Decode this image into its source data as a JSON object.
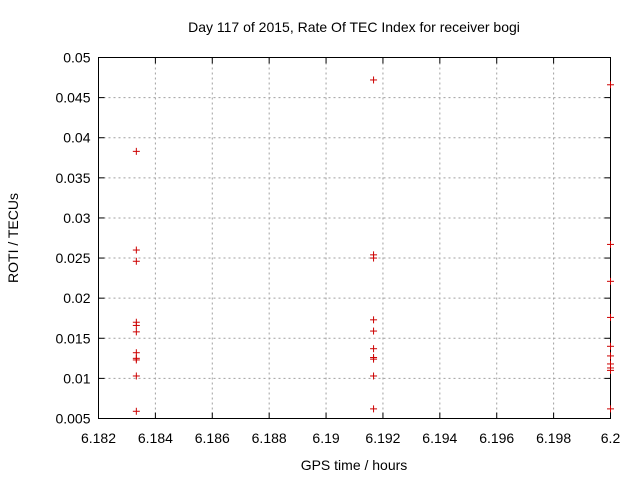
{
  "chart_data": {
    "type": "scatter",
    "title": "Day 117 of 2015, Rate Of TEC Index for receiver bogi",
    "xlabel": "GPS time / hours",
    "ylabel": "ROTI / TECUs",
    "xlim": [
      6.182,
      6.2
    ],
    "ylim": [
      0.005,
      0.05
    ],
    "x_ticks": [
      6.182,
      6.184,
      6.186,
      6.188,
      6.19,
      6.192,
      6.194,
      6.196,
      6.198,
      6.2
    ],
    "x_tick_labels": [
      "6.182",
      "6.184",
      "6.186",
      "6.188",
      "6.19",
      "6.192",
      "6.194",
      "6.196",
      "6.198",
      "6.2"
    ],
    "y_ticks": [
      0.005,
      0.01,
      0.015,
      0.02,
      0.025,
      0.03,
      0.035,
      0.04,
      0.045,
      0.05
    ],
    "y_tick_labels": [
      "0.005",
      "0.01",
      "0.015",
      "0.02",
      "0.025",
      "0.03",
      "0.035",
      "0.04",
      "0.045",
      "0.05"
    ],
    "grid": true,
    "marker": "+",
    "color": "#cc0000",
    "series": [
      {
        "name": "ROTI",
        "points": [
          {
            "x": 6.18333,
            "y": 0.0383
          },
          {
            "x": 6.18333,
            "y": 0.026
          },
          {
            "x": 6.18333,
            "y": 0.0246
          },
          {
            "x": 6.18333,
            "y": 0.017
          },
          {
            "x": 6.18333,
            "y": 0.0166
          },
          {
            "x": 6.18333,
            "y": 0.0158
          },
          {
            "x": 6.18333,
            "y": 0.0132
          },
          {
            "x": 6.18333,
            "y": 0.0125
          },
          {
            "x": 6.18333,
            "y": 0.0123
          },
          {
            "x": 6.18333,
            "y": 0.0103
          },
          {
            "x": 6.18333,
            "y": 0.0059
          },
          {
            "x": 6.19167,
            "y": 0.0472
          },
          {
            "x": 6.19167,
            "y": 0.0254
          },
          {
            "x": 6.19167,
            "y": 0.025
          },
          {
            "x": 6.19167,
            "y": 0.0173
          },
          {
            "x": 6.19167,
            "y": 0.0159
          },
          {
            "x": 6.19167,
            "y": 0.0137
          },
          {
            "x": 6.19167,
            "y": 0.0126
          },
          {
            "x": 6.19167,
            "y": 0.0124
          },
          {
            "x": 6.19167,
            "y": 0.0103
          },
          {
            "x": 6.19167,
            "y": 0.0062
          },
          {
            "x": 6.2,
            "y": 0.0466
          },
          {
            "x": 6.2,
            "y": 0.0267
          },
          {
            "x": 6.2,
            "y": 0.0221
          },
          {
            "x": 6.2,
            "y": 0.0176
          },
          {
            "x": 6.2,
            "y": 0.014
          },
          {
            "x": 6.2,
            "y": 0.0128
          },
          {
            "x": 6.2,
            "y": 0.0118
          },
          {
            "x": 6.2,
            "y": 0.0113
          },
          {
            "x": 6.2,
            "y": 0.011
          },
          {
            "x": 6.2,
            "y": 0.0062
          }
        ]
      }
    ]
  }
}
